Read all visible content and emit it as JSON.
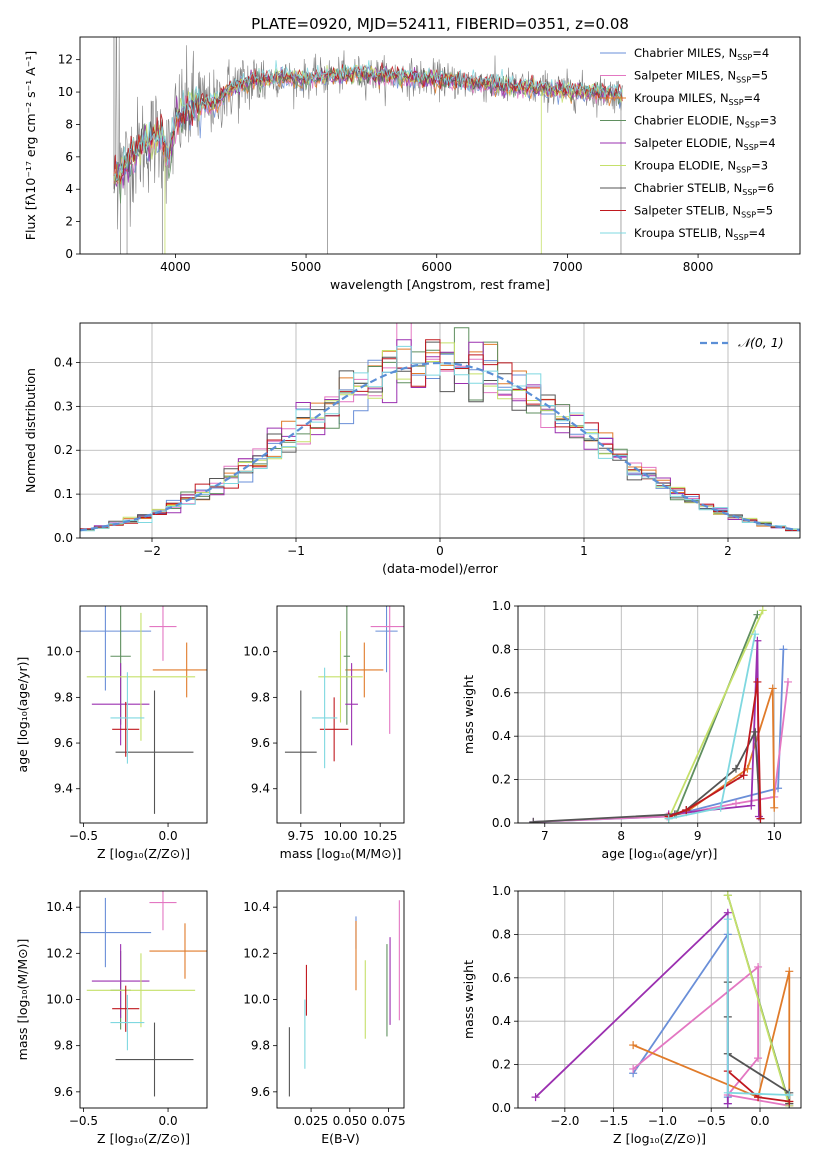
{
  "title": "PLATE=0920, MJD=52411, FIBERID=0351, z=0.08",
  "colors": {
    "Chabrier MILES": "#6a8fd8",
    "Salpeter MILES": "#e377c2",
    "Kroupa MILES": "#e07b2a",
    "Chabrier ELODIE": "#5f8f5f",
    "Salpeter ELODIE": "#9b30b0",
    "Kroupa ELODIE": "#c5e06a",
    "Chabrier STELIB": "#555555",
    "Salpeter STELIB": "#c0181e",
    "Kroupa STELIB": "#7fd8e0",
    "data": "#808080",
    "normal": "#5b8fd6"
  },
  "chart_data": [
    {
      "id": "spectrum",
      "type": "line",
      "xlabel": "wavelength [Angstrom, rest frame]",
      "ylabel": "Flux [fλ10⁻¹⁷ erg cm⁻² s⁻¹ A⁻¹]",
      "xlim": [
        3270,
        8780
      ],
      "ylim": [
        0,
        13.4
      ],
      "xticks": [
        4000,
        5000,
        6000,
        7000,
        8000
      ],
      "yticks": [
        0,
        2,
        4,
        6,
        8,
        10,
        12
      ],
      "legend_position": "top-right",
      "legend": [
        {
          "model": "Chabrier MILES",
          "label": "Chabrier MILES, N",
          "n": "4"
        },
        {
          "model": "Salpeter MILES",
          "label": "Salpeter MILES, N",
          "n": "5"
        },
        {
          "model": "Kroupa MILES",
          "label": "Kroupa MILES, N",
          "n": "4"
        },
        {
          "model": "Chabrier ELODIE",
          "label": "Chabrier ELODIE, N",
          "n": "3"
        },
        {
          "model": "Salpeter ELODIE",
          "label": "Salpeter ELODIE, N",
          "n": "4"
        },
        {
          "model": "Kroupa ELODIE",
          "label": "Kroupa ELODIE, N",
          "n": "3"
        },
        {
          "model": "Chabrier STELIB",
          "label": "Chabrier STELIB, N",
          "n": "6"
        },
        {
          "model": "Salpeter STELIB",
          "label": "Salpeter STELIB, N",
          "n": "5"
        },
        {
          "model": "Kroupa STELIB",
          "label": "Kroupa STELIB, N",
          "n": "4"
        }
      ],
      "legend_subscript": "SSP",
      "continuum": [
        [
          3530,
          4.5
        ],
        [
          3620,
          5.5
        ],
        [
          3700,
          6.4
        ],
        [
          3800,
          7.0
        ],
        [
          3900,
          7.3
        ],
        [
          3950,
          5.8
        ],
        [
          4000,
          8.2
        ],
        [
          4100,
          9.0
        ],
        [
          4200,
          9.4
        ],
        [
          4300,
          9.2
        ],
        [
          4400,
          10.1
        ],
        [
          4500,
          10.4
        ],
        [
          4600,
          10.7
        ],
        [
          4800,
          10.9
        ],
        [
          5000,
          10.8
        ],
        [
          5200,
          11.0
        ],
        [
          5400,
          11.1
        ],
        [
          5600,
          11.0
        ],
        [
          5800,
          10.9
        ],
        [
          6000,
          10.8
        ],
        [
          6200,
          10.6
        ],
        [
          6400,
          10.5
        ],
        [
          6600,
          10.3
        ],
        [
          6800,
          10.2
        ],
        [
          7000,
          10.1
        ],
        [
          7200,
          10.0
        ],
        [
          7420,
          9.9
        ]
      ]
    },
    {
      "id": "residuals",
      "type": "step",
      "xlabel": "(data-model)/error",
      "ylabel": "Normed distribution",
      "xlim": [
        -2.5,
        2.5
      ],
      "ylim": [
        0,
        0.49
      ],
      "xticks": [
        -2,
        -1,
        0,
        1,
        2
      ],
      "yticks": [
        0.0,
        0.1,
        0.2,
        0.3,
        0.4
      ],
      "legend_position": "top-right",
      "normal_label": "𝒩(0, 1)",
      "bin_width": 0.1,
      "bin_start": -2.5
    },
    {
      "id": "age-vs-Z",
      "type": "errorbar",
      "xlabel": "Z [log₁₀(Z/Z⊙)]",
      "ylabel": "age  [log₁₀(age/yr)]",
      "xlim": [
        -0.52,
        0.23
      ],
      "ylim": [
        9.25,
        10.2
      ],
      "xticks": [
        -0.5,
        0.0
      ],
      "yticks": [
        9.4,
        9.6,
        9.8,
        10.0
      ],
      "points": [
        {
          "model": "Chabrier MILES",
          "x": -0.37,
          "xerr": 0.27,
          "y": 10.09,
          "yerr": 0.26
        },
        {
          "model": "Salpeter MILES",
          "x": -0.03,
          "xerr": 0.08,
          "y": 10.11,
          "yerr": 0.15
        },
        {
          "model": "Kroupa MILES",
          "x": 0.11,
          "xerr": 0.2,
          "y": 9.92,
          "yerr": 0.12
        },
        {
          "model": "Chabrier ELODIE",
          "x": -0.28,
          "xerr": 0.06,
          "y": 9.98,
          "yerr": 0.3
        },
        {
          "model": "Salpeter ELODIE",
          "x": -0.28,
          "xerr": 0.17,
          "y": 9.77,
          "yerr": 0.18
        },
        {
          "model": "Kroupa ELODIE",
          "x": -0.16,
          "xerr": 0.32,
          "y": 9.89,
          "yerr": 0.28
        },
        {
          "model": "Chabrier STELIB",
          "x": -0.08,
          "xerr": 0.23,
          "y": 9.56,
          "yerr": 0.27
        },
        {
          "model": "Salpeter STELIB",
          "x": -0.25,
          "xerr": 0.08,
          "y": 9.66,
          "yerr": 0.12
        },
        {
          "model": "Kroupa STELIB",
          "x": -0.24,
          "xerr": 0.1,
          "y": 9.71,
          "yerr": 0.2
        }
      ]
    },
    {
      "id": "age-vs-mass",
      "type": "errorbar",
      "xlabel": "mass [log₁₀(M/M⊙)]",
      "ylabel": "",
      "xlim": [
        9.6,
        10.4
      ],
      "ylim": [
        9.25,
        10.2
      ],
      "xticks": [
        9.75,
        10.0,
        10.25
      ],
      "yticks": [
        9.4,
        9.6,
        9.8,
        10.0
      ],
      "points": [
        {
          "model": "Chabrier MILES",
          "x": 10.29,
          "xerr": 0.07,
          "y": 10.09,
          "yerr": 0.18
        },
        {
          "model": "Salpeter MILES",
          "x": 10.31,
          "xerr": 0.12,
          "y": 10.11,
          "yerr": 0.47
        },
        {
          "model": "Kroupa MILES",
          "x": 10.15,
          "xerr": 0.12,
          "y": 9.92,
          "yerr": 0.12
        },
        {
          "model": "Chabrier ELODIE",
          "x": 10.04,
          "xerr": 0.02,
          "y": 9.98,
          "yerr": 0.3
        },
        {
          "model": "Salpeter ELODIE",
          "x": 10.07,
          "xerr": 0.04,
          "y": 9.77,
          "yerr": 0.18
        },
        {
          "model": "Kroupa ELODIE",
          "x": 10.0,
          "xerr": 0.14,
          "y": 9.89,
          "yerr": 0.2
        },
        {
          "model": "Chabrier STELIB",
          "x": 9.75,
          "xerr": 0.1,
          "y": 9.56,
          "yerr": 0.27
        },
        {
          "model": "Salpeter STELIB",
          "x": 9.96,
          "xerr": 0.09,
          "y": 9.66,
          "yerr": 0.14
        },
        {
          "model": "Kroupa STELIB",
          "x": 9.9,
          "xerr": 0.08,
          "y": 9.71,
          "yerr": 0.22
        }
      ]
    },
    {
      "id": "mass-weight-vs-age",
      "type": "line",
      "xlabel": "age  [log₁₀(age/yr)]",
      "ylabel": "mass weight",
      "xlim": [
        6.65,
        10.35
      ],
      "ylim": [
        0,
        1.0
      ],
      "xticks": [
        7,
        8,
        9,
        10
      ],
      "yticks": [
        0.0,
        0.2,
        0.4,
        0.6,
        0.8,
        1.0
      ],
      "series": [
        {
          "model": "Chabrier MILES",
          "x": [
            6.85,
            8.62,
            10.05,
            10.12
          ],
          "y": [
            0.005,
            0.03,
            0.16,
            0.8
          ]
        },
        {
          "model": "Salpeter MILES",
          "x": [
            6.85,
            8.6,
            9.5,
            10.0,
            10.18
          ],
          "y": [
            0.005,
            0.03,
            0.09,
            0.12,
            0.65
          ]
        },
        {
          "model": "Kroupa MILES",
          "x": [
            8.62,
            8.85,
            9.65,
            9.98,
            10.0
          ],
          "y": [
            0.03,
            0.05,
            0.25,
            0.62,
            0.07
          ]
        },
        {
          "model": "Chabrier ELODIE",
          "x": [
            8.72,
            9.78
          ],
          "y": [
            0.04,
            0.96
          ]
        },
        {
          "model": "Salpeter ELODIE",
          "x": [
            8.62,
            9.7,
            9.78,
            9.8
          ],
          "y": [
            0.04,
            0.08,
            0.84,
            0.03
          ]
        },
        {
          "model": "Kroupa ELODIE",
          "x": [
            8.62,
            9.85
          ],
          "y": [
            0.02,
            0.98
          ]
        },
        {
          "model": "Chabrier STELIB",
          "x": [
            6.85,
            8.7,
            8.85,
            9.5,
            9.75,
            9.82
          ],
          "y": [
            0.005,
            0.04,
            0.06,
            0.25,
            0.42,
            0.02
          ]
        },
        {
          "model": "Salpeter STELIB",
          "x": [
            8.62,
            8.85,
            9.6,
            9.78,
            9.82
          ],
          "y": [
            0.03,
            0.06,
            0.22,
            0.65,
            0.02
          ]
        },
        {
          "model": "Kroupa STELIB",
          "x": [
            8.62,
            9.3,
            9.75
          ],
          "y": [
            0.02,
            0.07,
            0.87
          ]
        }
      ]
    },
    {
      "id": "mass-vs-Z",
      "type": "errorbar",
      "xlabel": "Z [log₁₀(Z/Z⊙)]",
      "ylabel": "mass [log₁₀(M/M⊙)]",
      "xlim": [
        -0.52,
        0.23
      ],
      "ylim": [
        9.53,
        10.47
      ],
      "xticks": [
        -0.5,
        0.0
      ],
      "yticks": [
        9.6,
        9.8,
        10.0,
        10.2,
        10.4
      ],
      "points": [
        {
          "model": "Chabrier MILES",
          "x": -0.37,
          "xerr": 0.27,
          "y": 10.29,
          "yerr": 0.15
        },
        {
          "model": "Salpeter MILES",
          "x": -0.03,
          "xerr": 0.08,
          "y": 10.42,
          "yerr": 0.12
        },
        {
          "model": "Kroupa MILES",
          "x": 0.1,
          "xerr": 0.21,
          "y": 10.21,
          "yerr": 0.12
        },
        {
          "model": "Chabrier ELODIE",
          "x": -0.28,
          "xerr": 0.06,
          "y": 10.04,
          "yerr": 0.17
        },
        {
          "model": "Salpeter ELODIE",
          "x": -0.28,
          "xerr": 0.17,
          "y": 10.08,
          "yerr": 0.16
        },
        {
          "model": "Kroupa ELODIE",
          "x": -0.16,
          "xerr": 0.32,
          "y": 10.04,
          "yerr": 0.16
        },
        {
          "model": "Chabrier STELIB",
          "x": -0.08,
          "xerr": 0.23,
          "y": 9.74,
          "yerr": 0.16
        },
        {
          "model": "Salpeter STELIB",
          "x": -0.25,
          "xerr": 0.08,
          "y": 9.96,
          "yerr": 0.1
        },
        {
          "model": "Kroupa STELIB",
          "x": -0.24,
          "xerr": 0.1,
          "y": 9.9,
          "yerr": 0.12
        }
      ]
    },
    {
      "id": "mass-vs-ebv",
      "type": "errorbar",
      "xlabel": "E(B-V)",
      "ylabel": "",
      "xlim": [
        0.003,
        0.085
      ],
      "ylim": [
        9.53,
        10.47
      ],
      "xticks": [
        0.025,
        0.05,
        0.075
      ],
      "yticks": [
        9.6,
        9.8,
        10.0,
        10.2,
        10.4
      ],
      "points": [
        {
          "model": "Chabrier MILES",
          "x": 0.054,
          "xerr": 0.0,
          "y": 10.29,
          "yerr": 0.07
        },
        {
          "model": "Salpeter MILES",
          "x": 0.082,
          "xerr": 0.0,
          "y": 10.17,
          "yerr": 0.26
        },
        {
          "model": "Kroupa MILES",
          "x": 0.054,
          "xerr": 0.0,
          "y": 10.19,
          "yerr": 0.15
        },
        {
          "model": "Chabrier ELODIE",
          "x": 0.074,
          "xerr": 0.0,
          "y": 10.04,
          "yerr": 0.2
        },
        {
          "model": "Salpeter ELODIE",
          "x": 0.076,
          "xerr": 0.0,
          "y": 10.08,
          "yerr": 0.19
        },
        {
          "model": "Kroupa ELODIE",
          "x": 0.06,
          "xerr": 0.0,
          "y": 10.0,
          "yerr": 0.17
        },
        {
          "model": "Chabrier STELIB",
          "x": 0.011,
          "xerr": 0.0,
          "y": 9.73,
          "yerr": 0.15
        },
        {
          "model": "Salpeter STELIB",
          "x": 0.022,
          "xerr": 0.0,
          "y": 10.04,
          "yerr": 0.11
        },
        {
          "model": "Kroupa STELIB",
          "x": 0.021,
          "xerr": 0.0,
          "y": 9.85,
          "yerr": 0.15
        }
      ]
    },
    {
      "id": "mass-weight-vs-Z",
      "type": "line",
      "xlabel": "Z [log₁₀(Z/Z⊙)]",
      "ylabel": "mass weight",
      "xlim": [
        -2.48,
        0.42
      ],
      "ylim": [
        0,
        1.0
      ],
      "xticks": [
        -2.0,
        -1.5,
        -1.0,
        -0.5,
        0.0
      ],
      "yticks": [
        0.0,
        0.2,
        0.4,
        0.6,
        0.8,
        1.0
      ],
      "series": [
        {
          "model": "Chabrier MILES",
          "x": [
            -1.3,
            -0.33,
            -0.33,
            -0.33
          ],
          "y": [
            0.16,
            0.8,
            0.05,
            0.02
          ]
        },
        {
          "model": "Salpeter MILES",
          "x": [
            -1.3,
            -0.02,
            -0.02,
            -0.33,
            0.3
          ],
          "y": [
            0.18,
            0.65,
            0.23,
            0.06,
            0.01
          ]
        },
        {
          "model": "Kroupa MILES",
          "x": [
            -1.3,
            -0.02,
            0.3,
            0.3
          ],
          "y": [
            0.29,
            0.05,
            0.63,
            0.03
          ]
        },
        {
          "model": "Chabrier ELODIE",
          "x": [
            -0.33,
            0.3
          ],
          "y": [
            0.98,
            0.02
          ]
        },
        {
          "model": "Salpeter ELODIE",
          "x": [
            -2.3,
            -0.33,
            -0.33
          ],
          "y": [
            0.05,
            0.9,
            0.02
          ]
        },
        {
          "model": "Kroupa ELODIE",
          "x": [
            -0.33,
            0.3
          ],
          "y": [
            0.98,
            0.01
          ]
        },
        {
          "model": "Chabrier STELIB",
          "x": [
            -0.33,
            -0.33,
            -0.33,
            0.3,
            0.3
          ],
          "y": [
            0.58,
            0.42,
            0.25,
            0.07,
            0.02
          ]
        },
        {
          "model": "Salpeter STELIB",
          "x": [
            -0.33,
            -0.02,
            0.3
          ],
          "y": [
            0.17,
            0.05,
            0.03
          ]
        },
        {
          "model": "Kroupa STELIB",
          "x": [
            -0.33,
            -0.33,
            0.3
          ],
          "y": [
            0.87,
            0.07,
            0.06
          ]
        }
      ]
    }
  ]
}
